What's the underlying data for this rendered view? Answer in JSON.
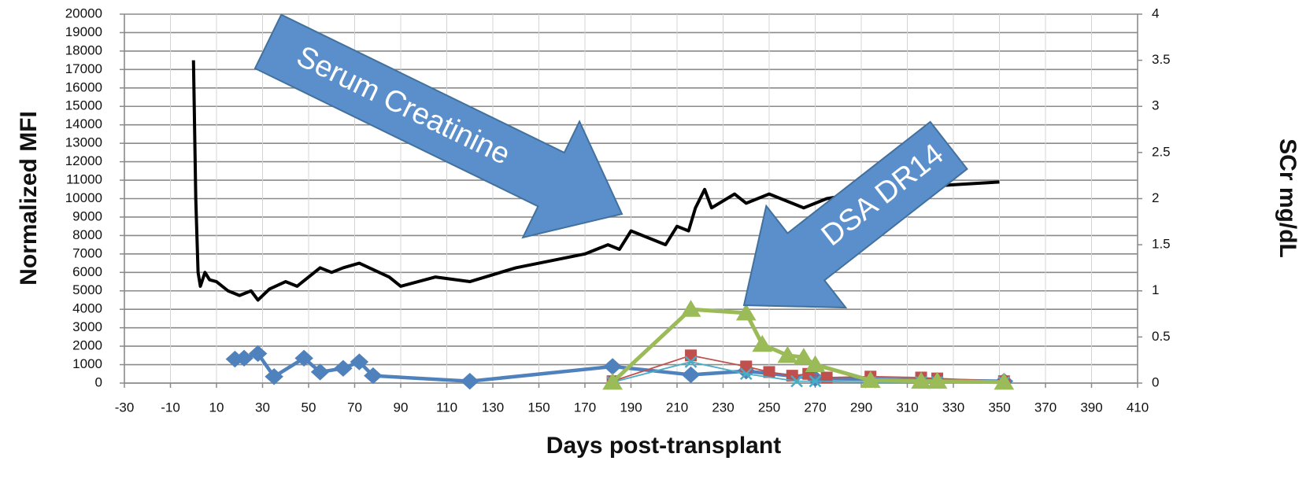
{
  "chart_data": {
    "type": "line",
    "x_label": "Days post-transplant",
    "y_label": "Normalized MFI",
    "y2_label": "SCr mg/dL",
    "xlim": [
      -30,
      410
    ],
    "xticks": [
      -30,
      -10,
      10,
      30,
      50,
      70,
      90,
      110,
      130,
      150,
      170,
      190,
      210,
      230,
      250,
      270,
      290,
      310,
      330,
      350,
      370,
      390,
      410
    ],
    "ylim": [
      0,
      20000
    ],
    "yticks": [
      0,
      1000,
      2000,
      3000,
      4000,
      5000,
      6000,
      7000,
      8000,
      9000,
      10000,
      11000,
      12000,
      13000,
      14000,
      15000,
      16000,
      17000,
      18000,
      19000,
      20000
    ],
    "y2lim": [
      0,
      4
    ],
    "y2ticks": [
      0,
      0.5,
      1,
      1.5,
      2,
      2.5,
      3,
      3.5,
      4
    ],
    "grid": true,
    "annotations": [
      "Serum Creatinine",
      "DSA DR14"
    ],
    "series": [
      {
        "color": "#000000",
        "marker": "none",
        "axis": "y2",
        "x": [
          0,
          1,
          2,
          3,
          5,
          7,
          10,
          15,
          20,
          25,
          28,
          33,
          40,
          45,
          50,
          55,
          60,
          65,
          72,
          85,
          90,
          105,
          120,
          140,
          170,
          180,
          185,
          190,
          200,
          205,
          210,
          215,
          218,
          222,
          225,
          235,
          240,
          250,
          265,
          275,
          300,
          330,
          350
        ],
        "values": [
          3.5,
          2.0,
          1.2,
          1.05,
          1.2,
          1.12,
          1.1,
          1.0,
          0.95,
          1.0,
          0.9,
          1.02,
          1.1,
          1.05,
          1.15,
          1.25,
          1.2,
          1.25,
          1.3,
          1.15,
          1.05,
          1.15,
          1.1,
          1.25,
          1.4,
          1.5,
          1.45,
          1.65,
          1.55,
          1.5,
          1.7,
          1.65,
          1.9,
          2.1,
          1.9,
          2.05,
          1.95,
          2.05,
          1.9,
          2.0,
          2.1,
          2.15,
          2.18
        ]
      },
      {
        "color": "#4f81bd",
        "marker": "diamond",
        "x": [
          18,
          22,
          28,
          35,
          48,
          55,
          65,
          72,
          78,
          120,
          182,
          216,
          240,
          270,
          352
        ],
        "values": [
          1300,
          1350,
          1600,
          350,
          1350,
          600,
          800,
          1150,
          400,
          100,
          900,
          450,
          650,
          250,
          100
        ]
      },
      {
        "color": "#c0504d",
        "marker": "square",
        "x": [
          182,
          216,
          240,
          250,
          260,
          267,
          275,
          294,
          316,
          323,
          352
        ],
        "values": [
          100,
          1500,
          900,
          600,
          400,
          500,
          300,
          350,
          300,
          250,
          100
        ]
      },
      {
        "color": "#4bacc6",
        "marker": "x",
        "x": [
          182,
          216,
          240,
          262,
          270,
          294,
          316,
          323,
          352
        ],
        "values": [
          50,
          1150,
          500,
          100,
          100,
          50,
          50,
          50,
          50
        ]
      },
      {
        "color": "#9bbb59",
        "marker": "triangle",
        "x": [
          182,
          216,
          240,
          247,
          258,
          265,
          270,
          294,
          316,
          323,
          352
        ],
        "values": [
          50,
          4000,
          3800,
          2100,
          1500,
          1400,
          1000,
          150,
          100,
          100,
          50
        ]
      }
    ]
  }
}
